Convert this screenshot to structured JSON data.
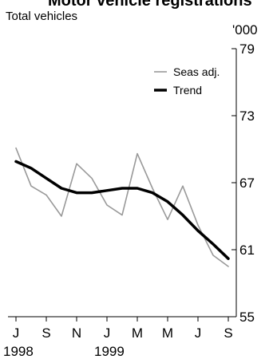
{
  "chart_data": {
    "type": "line",
    "title_fragment": "Motor vehicle registrations",
    "subtitle": "Total vehicles",
    "y_unit": "'000",
    "ylim": [
      55,
      79
    ],
    "y_ticks": [
      "55",
      "61",
      "67",
      "73",
      "79"
    ],
    "x": [
      "Jul 1998",
      "Aug 1998",
      "Sep 1998",
      "Oct 1998",
      "Nov 1998",
      "Dec 1998",
      "Jan 1999",
      "Feb 1999",
      "Mar 1999",
      "Apr 1999",
      "May 1999",
      "Jun 1999",
      "Jul 1999",
      "Aug 1999",
      "Sep 1999"
    ],
    "x_tick_labels": [
      "J",
      "S",
      "N",
      "J",
      "M",
      "M",
      "J",
      "S"
    ],
    "x_year_labels": [
      "1998",
      "1999"
    ],
    "series": [
      {
        "name": "Seas adj.",
        "color": "#999999",
        "values": [
          70.1,
          66.7,
          65.9,
          64.0,
          68.7,
          67.4,
          65.0,
          64.1,
          69.6,
          66.5,
          63.7,
          66.7,
          63.2,
          60.5,
          59.5
        ]
      },
      {
        "name": "Trend",
        "color": "#000000",
        "values": [
          68.9,
          68.3,
          67.4,
          66.5,
          66.1,
          66.1,
          66.3,
          66.5,
          66.5,
          66.1,
          65.3,
          64.1,
          62.7,
          61.5,
          60.2
        ]
      }
    ],
    "legend_position": "top-right",
    "grid": false
  }
}
